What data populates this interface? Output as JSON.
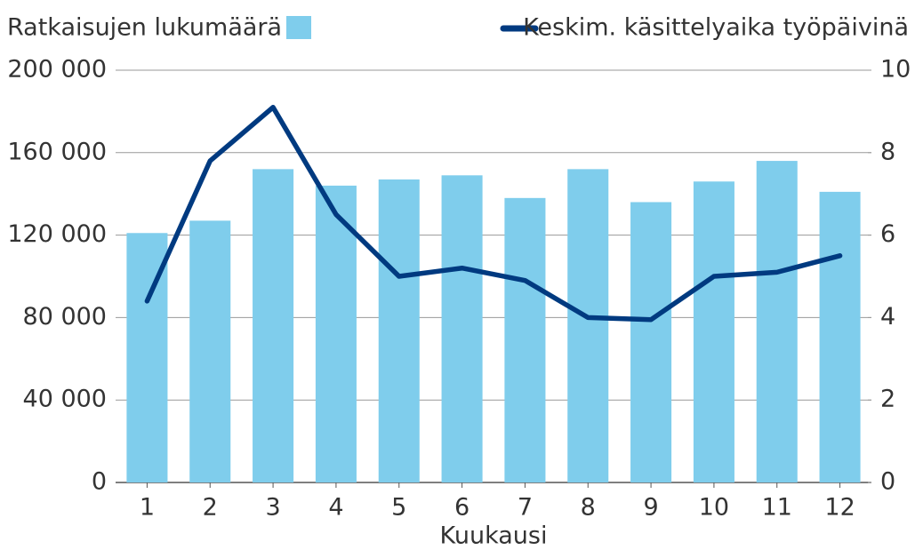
{
  "chart_data": {
    "type": "bar",
    "x_label": "Kuukausi",
    "categories": [
      "1",
      "2",
      "3",
      "4",
      "5",
      "6",
      "7",
      "8",
      "9",
      "10",
      "11",
      "12"
    ],
    "series": [
      {
        "name": "Ratkaisujen lukumäärä",
        "type": "bar",
        "color": "#7fcdec",
        "axis": "y",
        "values": [
          121000,
          127000,
          152000,
          144000,
          147000,
          149000,
          138000,
          152000,
          136000,
          146000,
          156000,
          141000
        ]
      },
      {
        "name": "Keskim. käsittelyaika työpäivinä",
        "type": "line",
        "color": "#003a80",
        "axis": "y2",
        "values": [
          4.4,
          7.8,
          9.1,
          6.5,
          5.0,
          5.2,
          4.9,
          4.0,
          3.95,
          5.0,
          5.1,
          5.5
        ]
      }
    ],
    "ylim": [
      0,
      200000
    ],
    "yticks": [
      0,
      {
        "value": 40000,
        "label": "40 000"
      },
      {
        "value": 80000,
        "label": "80 000"
      },
      {
        "value": 120000,
        "label": "120 000"
      },
      {
        "value": 160000,
        "label": "160 000"
      },
      {
        "value": 200000,
        "label": "200 000"
      }
    ],
    "y2lim": [
      0,
      10
    ],
    "y2ticks": [
      0,
      2,
      4,
      6,
      8,
      10
    ],
    "grid": true
  }
}
